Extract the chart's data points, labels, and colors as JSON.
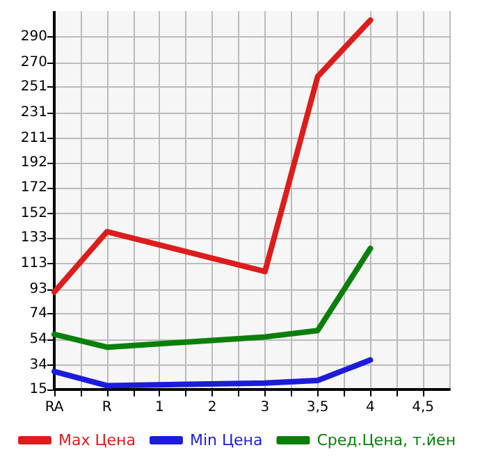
{
  "chart_data": {
    "type": "line",
    "categories": [
      "RA",
      "R",
      "1",
      "2",
      "3",
      "3,5",
      "4",
      "4,5"
    ],
    "series": [
      {
        "name": "Max Цена",
        "color": "#dd1c1c",
        "values": [
          91,
          138,
          null,
          null,
          107,
          259,
          303,
          null
        ]
      },
      {
        "name": "Min Цена",
        "color": "#1c1cdd",
        "values": [
          29,
          18,
          null,
          null,
          20,
          22,
          38,
          null
        ]
      },
      {
        "name": "Сред.Цена, т.йен",
        "color": "#0a800a",
        "values": [
          58,
          48,
          null,
          null,
          56,
          61,
          125,
          null
        ]
      }
    ],
    "ylim": [
      15,
      310
    ],
    "yticks": [
      15,
      34,
      54,
      74,
      93,
      113,
      133,
      152,
      172,
      192,
      211,
      231,
      251,
      270,
      290
    ],
    "grid": true,
    "legend": "bottom",
    "marker": "none",
    "line_style": "solid"
  }
}
